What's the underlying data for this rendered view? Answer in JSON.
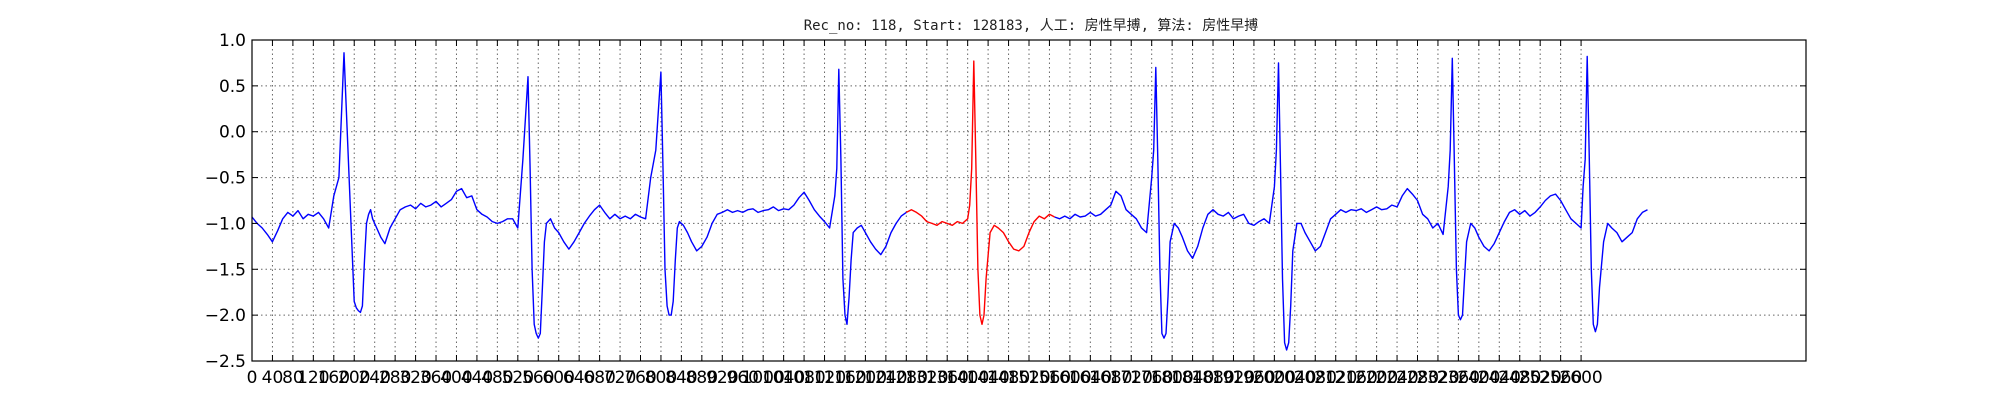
{
  "chart_data": {
    "type": "line",
    "title": "Rec_no: 118, Start: 128183, 人工: 房性早搏, 算法: 房性早搏",
    "xlabel": "",
    "ylabel": "",
    "xlim": [
      0,
      1520
    ],
    "ylim": [
      -2.5,
      1.0
    ],
    "grid": true,
    "yticks": [
      1.0,
      0.5,
      0.0,
      -0.5,
      -1.0,
      -1.5,
      -2.0,
      -2.5
    ],
    "ytick_labels": [
      "1.0",
      "0.5",
      "0.0",
      "−0.5",
      "−1.0",
      "−1.5",
      "−2.0",
      "−2.5"
    ],
    "xtick_step": 20,
    "xtick_labels": [
      "0",
      "40",
      "80",
      "120",
      "160",
      "200",
      "240",
      "280",
      "320",
      "360",
      "400",
      "440",
      "480",
      "520",
      "560",
      "600",
      "640",
      "680",
      "720",
      "760",
      "800",
      "840",
      "880",
      "920",
      "960",
      "1000",
      "1040",
      "1080",
      "1120",
      "1160",
      "1200",
      "1240",
      "1280",
      "1320",
      "1360",
      "1400",
      "1440",
      "1480",
      "1520",
      "1560",
      "1600",
      "1640",
      "1680",
      "1720",
      "1760",
      "1800",
      "1840",
      "1880",
      "1920",
      "1960",
      "2000",
      "2040",
      "2080",
      "2120",
      "2160",
      "2200",
      "2240",
      "2280",
      "2320",
      "2360",
      "2400",
      "2440",
      "2480",
      "2520",
      "2560",
      "2600"
    ],
    "series": [
      {
        "color": "#0000ff",
        "x": [
          0,
          5,
          10,
          15,
          20,
          25,
          30,
          35,
          40,
          45,
          50,
          55,
          60,
          65,
          70,
          75,
          80,
          85,
          90,
          95,
          100,
          102,
          104,
          106,
          108,
          110,
          112,
          114,
          116,
          118,
          122,
          126,
          130,
          135,
          140,
          145,
          150,
          155,
          160,
          165,
          170,
          175,
          180,
          185,
          190,
          195,
          200,
          205,
          210,
          215,
          220,
          225,
          230,
          235,
          240,
          245,
          250,
          255,
          260,
          265,
          270,
          272,
          274,
          276,
          278,
          280,
          282,
          284,
          286,
          288,
          292,
          296,
          300,
          305,
          310,
          315,
          320,
          325,
          330,
          335,
          340,
          345,
          350,
          355,
          360,
          365,
          370,
          375,
          380,
          385,
          390,
          395,
          400,
          402,
          404,
          406,
          408,
          410,
          412,
          414,
          416,
          418,
          422,
          426,
          430,
          435,
          440,
          445,
          450,
          455,
          460,
          465,
          470,
          475,
          480,
          485,
          490,
          495,
          500,
          505,
          510,
          515,
          520,
          525,
          530,
          535,
          540,
          545,
          550,
          555,
          560,
          565,
          570,
          572,
          574,
          576,
          578,
          580,
          582,
          584,
          586,
          588,
          592,
          596,
          600,
          605,
          610,
          615,
          620,
          625,
          630,
          635,
          640
        ],
        "y": [
          -0.93,
          -1.0,
          -1.05,
          -1.12,
          -1.2,
          -1.08,
          -0.95,
          -0.88,
          -0.92,
          -0.86,
          -0.95,
          -0.9,
          -0.92,
          -0.88,
          -0.95,
          -1.05,
          -0.7,
          -0.5,
          0.86,
          -0.5,
          -1.85,
          -1.92,
          -1.95,
          -1.97,
          -1.9,
          -1.4,
          -1.0,
          -0.9,
          -0.85,
          -0.95,
          -1.05,
          -1.15,
          -1.22,
          -1.05,
          -0.95,
          -0.85,
          -0.82,
          -0.8,
          -0.84,
          -0.78,
          -0.82,
          -0.8,
          -0.76,
          -0.82,
          -0.78,
          -0.74,
          -0.65,
          -0.62,
          -0.72,
          -0.7,
          -0.85,
          -0.9,
          -0.93,
          -0.98,
          -1.0,
          -0.98,
          -0.95,
          -0.95,
          -1.05,
          -0.3,
          0.6,
          -0.4,
          -1.5,
          -2.1,
          -2.2,
          -2.25,
          -2.2,
          -1.7,
          -1.2,
          -1.0,
          -0.95,
          -1.05,
          -1.1,
          -1.2,
          -1.28,
          -1.2,
          -1.1,
          -1.0,
          -0.92,
          -0.85,
          -0.8,
          -0.88,
          -0.95,
          -0.9,
          -0.95,
          -0.92,
          -0.95,
          -0.9,
          -0.93,
          -0.95,
          -0.5,
          -0.2,
          0.65,
          -0.4,
          -1.5,
          -1.9,
          -2.0,
          -2.0,
          -1.85,
          -1.4,
          -1.05,
          -0.98,
          -1.02,
          -1.1,
          -1.2,
          -1.3,
          -1.25,
          -1.15,
          -1.0,
          -0.9,
          -0.88,
          -0.85,
          -0.88,
          -0.86,
          -0.88,
          -0.85,
          -0.84,
          -0.88,
          -0.86,
          -0.85,
          -0.82,
          -0.86,
          -0.84,
          -0.85,
          -0.8,
          -0.72,
          -0.66,
          -0.75,
          -0.85,
          -0.92,
          -0.98,
          -1.05,
          -0.7,
          -0.4,
          0.68,
          -0.3,
          -1.6,
          -2.0,
          -2.1,
          -1.8,
          -1.4,
          -1.1,
          -1.05,
          -1.02,
          -1.1,
          -1.2,
          -1.28,
          -1.34,
          -1.25,
          -1.1,
          -1.0,
          -0.92,
          -0.88
        ]
      },
      {
        "color": "#ff0000",
        "x": [
          640,
          645,
          650,
          655,
          660,
          665,
          670,
          675,
          680,
          685,
          690,
          695,
          700,
          702,
          704,
          706,
          708,
          710,
          712,
          714,
          716,
          718,
          722,
          726,
          730,
          735,
          740,
          745,
          750,
          755,
          760,
          765,
          770,
          775,
          780,
          785
        ],
        "y": [
          -0.88,
          -0.85,
          -0.88,
          -0.92,
          -0.98,
          -1.0,
          -1.02,
          -0.98,
          -1.0,
          -1.02,
          -0.98,
          -1.0,
          -0.95,
          -0.8,
          -0.4,
          0.77,
          -0.3,
          -1.5,
          -2.0,
          -2.1,
          -2.0,
          -1.6,
          -1.1,
          -1.02,
          -1.05,
          -1.1,
          -1.2,
          -1.28,
          -1.3,
          -1.25,
          -1.1,
          -0.98,
          -0.92,
          -0.95,
          -0.9,
          -0.93
        ]
      },
      {
        "color": "#0000ff",
        "x": [
          785,
          790,
          795,
          800,
          805,
          810,
          815,
          820,
          825,
          830,
          835,
          840,
          845,
          850,
          855,
          860,
          865,
          870,
          875,
          880,
          882,
          884,
          886,
          888,
          890,
          892,
          894,
          896,
          898,
          902,
          906,
          910,
          915,
          920,
          925,
          930,
          935,
          940,
          945,
          950,
          955,
          960,
          965,
          970,
          975,
          980,
          985,
          990,
          995,
          1000,
          1002,
          1004,
          1006,
          1008,
          1010,
          1012,
          1014,
          1016,
          1018,
          1022,
          1026,
          1030,
          1035,
          1040,
          1045,
          1050,
          1055,
          1060,
          1065,
          1070,
          1075,
          1080,
          1085,
          1090,
          1095,
          1100,
          1105,
          1110,
          1115,
          1120,
          1125,
          1130,
          1135,
          1140,
          1145,
          1150,
          1155,
          1160,
          1165,
          1170,
          1172,
          1174,
          1176,
          1178,
          1180,
          1182,
          1184,
          1186,
          1188,
          1192,
          1196,
          1200,
          1205,
          1210,
          1215,
          1220,
          1225,
          1230,
          1235,
          1240,
          1245,
          1250,
          1255,
          1260,
          1265,
          1270,
          1275,
          1280,
          1285,
          1290,
          1295,
          1300,
          1302,
          1304,
          1306,
          1308,
          1310,
          1312,
          1314,
          1316,
          1318,
          1322,
          1326,
          1330,
          1335,
          1340,
          1345,
          1350,
          1355,
          1360,
          1365
        ],
        "y": [
          -0.93,
          -0.95,
          -0.92,
          -0.95,
          -0.9,
          -0.93,
          -0.92,
          -0.88,
          -0.92,
          -0.9,
          -0.85,
          -0.8,
          -0.65,
          -0.7,
          -0.85,
          -0.9,
          -0.95,
          -1.05,
          -1.1,
          -0.5,
          -0.2,
          0.7,
          -0.3,
          -1.5,
          -2.2,
          -2.25,
          -2.2,
          -1.8,
          -1.2,
          -1.0,
          -1.05,
          -1.15,
          -1.3,
          -1.38,
          -1.25,
          -1.05,
          -0.9,
          -0.85,
          -0.9,
          -0.92,
          -0.88,
          -0.95,
          -0.92,
          -0.9,
          -1.0,
          -1.02,
          -0.98,
          -0.95,
          -1.0,
          -0.6,
          -0.2,
          0.75,
          -0.4,
          -1.6,
          -2.3,
          -2.38,
          -2.3,
          -1.9,
          -1.3,
          -1.0,
          -1.0,
          -1.1,
          -1.2,
          -1.3,
          -1.25,
          -1.1,
          -0.95,
          -0.9,
          -0.85,
          -0.88,
          -0.85,
          -0.86,
          -0.84,
          -0.88,
          -0.85,
          -0.82,
          -0.85,
          -0.84,
          -0.8,
          -0.82,
          -0.7,
          -0.62,
          -0.68,
          -0.75,
          -0.9,
          -0.95,
          -1.05,
          -1.0,
          -1.12,
          -0.6,
          -0.2,
          0.8,
          -0.3,
          -1.5,
          -2.0,
          -2.05,
          -2.0,
          -1.6,
          -1.2,
          -1.0,
          -1.05,
          -1.15,
          -1.25,
          -1.3,
          -1.22,
          -1.1,
          -0.98,
          -0.88,
          -0.85,
          -0.9,
          -0.86,
          -0.92,
          -0.88,
          -0.82,
          -0.75,
          -0.7,
          -0.68,
          -0.75,
          -0.85,
          -0.95,
          -1.0,
          -1.05,
          -0.6,
          -0.3,
          0.82,
          -0.3,
          -1.5,
          -2.1,
          -2.18,
          -2.1,
          -1.7,
          -1.2,
          -1.0,
          -1.05,
          -1.1,
          -1.2,
          -1.15,
          -1.1,
          -0.95,
          -0.88,
          -0.85
        ]
      }
    ]
  }
}
